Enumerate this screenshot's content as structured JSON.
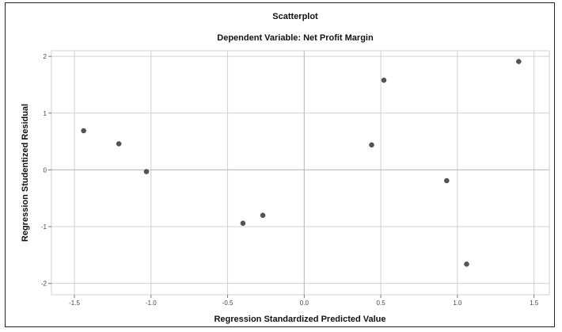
{
  "chart_data": {
    "type": "scatter",
    "title": "Scatterplot",
    "subtitle": "Dependent Variable: Net Profit Margin",
    "xlabel": "Regression Standardized Predicted Value",
    "ylabel": "Regression Studentized Residual",
    "xlim": [
      -1.65,
      1.6
    ],
    "ylim": [
      -2.2,
      2.1
    ],
    "xticks": [
      -1.5,
      -1.0,
      -0.5,
      0.0,
      0.5,
      1.0,
      1.5
    ],
    "xtick_labels": [
      "-1.5",
      "-1.0",
      "-0.5",
      "0.0",
      "0.5",
      "1.0",
      "1.5"
    ],
    "yticks": [
      -2,
      -1,
      0,
      1,
      2
    ],
    "ytick_labels": [
      "-2",
      "-1",
      "0",
      "1",
      "2"
    ],
    "grid": true,
    "reference_lines": {
      "x": 0,
      "y": 0
    },
    "point_color": "#555555",
    "points": [
      {
        "x": -1.44,
        "y": 0.69
      },
      {
        "x": -1.21,
        "y": 0.46
      },
      {
        "x": -1.03,
        "y": -0.03
      },
      {
        "x": -0.4,
        "y": -0.94
      },
      {
        "x": -0.27,
        "y": -0.8
      },
      {
        "x": 0.44,
        "y": 0.44
      },
      {
        "x": 0.52,
        "y": 1.58
      },
      {
        "x": 0.93,
        "y": -0.19
      },
      {
        "x": 1.06,
        "y": -1.66
      },
      {
        "x": 1.4,
        "y": 1.91
      }
    ]
  }
}
